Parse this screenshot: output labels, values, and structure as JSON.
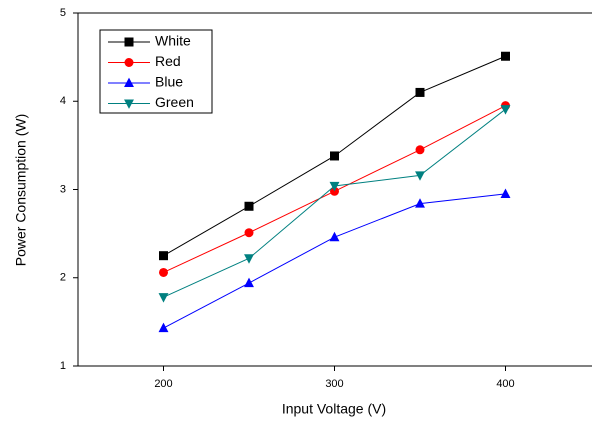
{
  "chart_data": {
    "type": "line",
    "x_label": "Input Voltage (V)",
    "y_label": "Power Consumption (W)",
    "x": [
      200,
      250,
      300,
      350,
      400
    ],
    "xlim": [
      150,
      450
    ],
    "xticks": [
      200,
      300,
      400
    ],
    "ylim": [
      1,
      5
    ],
    "yticks": [
      1,
      2,
      3,
      4,
      5
    ],
    "legend": "upper left",
    "series": [
      {
        "name": "White",
        "color": "#000000",
        "marker": "square",
        "values": [
          2.25,
          2.81,
          3.38,
          4.1,
          4.51
        ]
      },
      {
        "name": "Red",
        "color": "#ff0000",
        "marker": "circle",
        "values": [
          2.06,
          2.51,
          2.98,
          3.45,
          3.95
        ]
      },
      {
        "name": "Blue",
        "color": "#0000ff",
        "marker": "triangle-up",
        "values": [
          1.43,
          1.94,
          2.46,
          2.84,
          2.95
        ]
      },
      {
        "name": "Green",
        "color": "#008080",
        "marker": "triangle-down",
        "values": [
          1.78,
          2.22,
          3.04,
          3.16,
          3.91
        ]
      }
    ]
  }
}
